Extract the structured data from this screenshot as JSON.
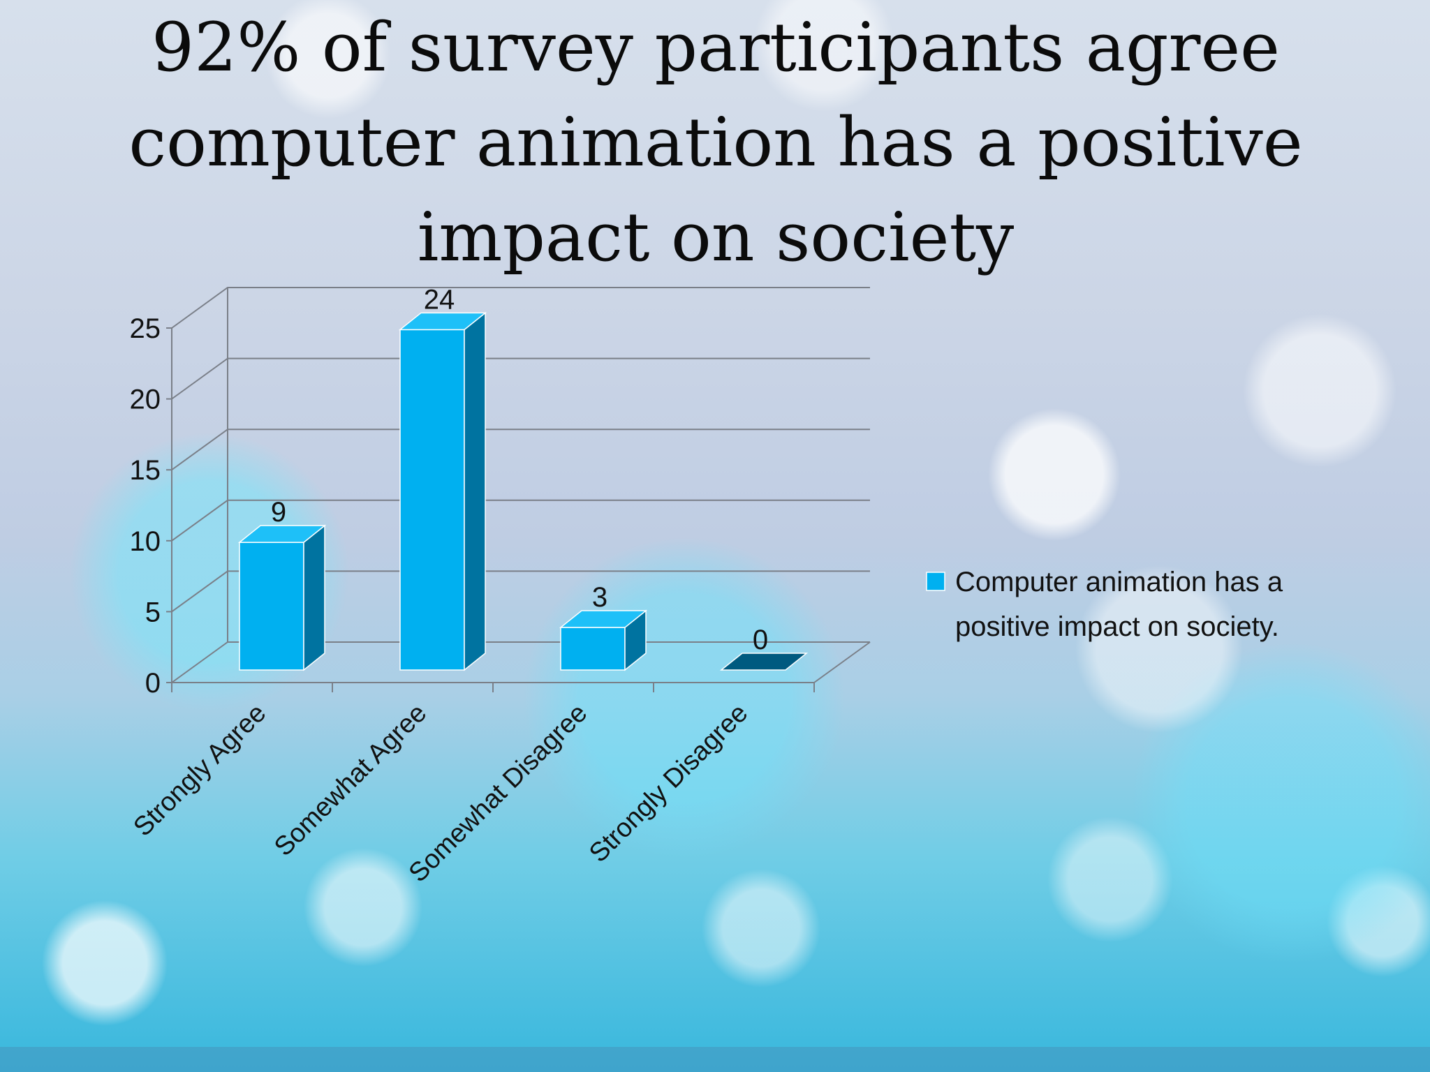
{
  "slide": {
    "title_lines": [
      "92% of survey participants agree",
      "computer animation has a positive",
      "impact on society"
    ]
  },
  "colors": {
    "bar_front": "#00B0F0",
    "bar_side": "#0073A0",
    "bar_top": "#1EC0F8",
    "bar_zero": "#005A80",
    "grid": "#7a7f88"
  },
  "chart_data": {
    "type": "bar",
    "style": "3d-column",
    "categories": [
      "Strongly Agree",
      "Somewhat Agree",
      "Somewhat Disagree",
      "Strongly Disagree"
    ],
    "series": [
      {
        "name": "Computer animation has a positive impact on society.",
        "values": [
          9,
          24,
          3,
          0
        ]
      }
    ],
    "data_labels": [
      "9",
      "24",
      "3",
      "0"
    ],
    "yticks": [
      "0",
      "5",
      "10",
      "15",
      "20",
      "25"
    ],
    "ylim": [
      0,
      25
    ],
    "grid": true,
    "legend_position": "right",
    "legend_lines": [
      "Computer animation has a",
      "positive impact on society."
    ]
  }
}
